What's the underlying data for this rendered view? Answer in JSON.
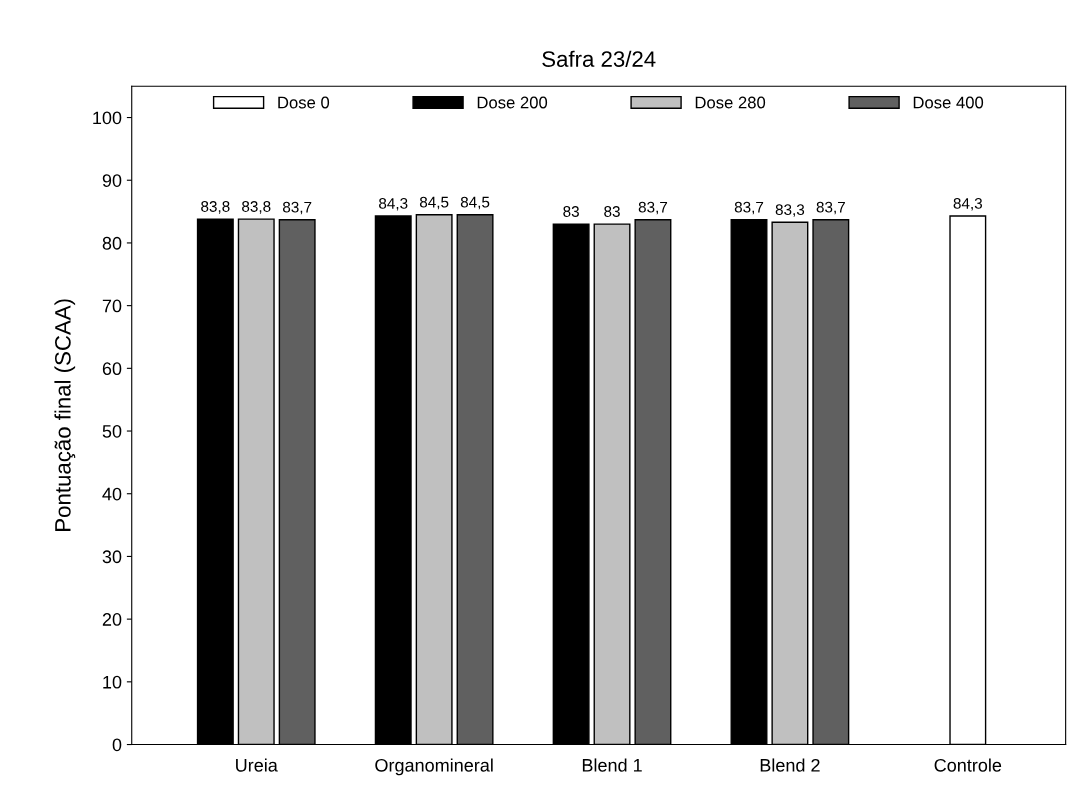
{
  "chart_data": {
    "type": "bar",
    "title": "Safra 23/24",
    "ylabel": "Pontuação final (SCAA)",
    "categories": [
      "Ureia",
      "Organomineral",
      "Blend 1",
      "Blend 2",
      "Controle"
    ],
    "series": [
      {
        "name": "Dose 0",
        "color": "#ffffff",
        "values": [
          null,
          null,
          null,
          null,
          84.3
        ],
        "value_labels": [
          null,
          null,
          null,
          null,
          "84,3"
        ]
      },
      {
        "name": "Dose 200",
        "color": "#000000",
        "values": [
          83.8,
          84.3,
          83,
          83.7,
          null
        ],
        "value_labels": [
          "83,8",
          "84,3",
          "83",
          "83,7",
          null
        ]
      },
      {
        "name": "Dose 280",
        "color": "#c0c0c0",
        "values": [
          83.8,
          84.5,
          83,
          83.3,
          null
        ],
        "value_labels": [
          "83,8",
          "84,5",
          "83",
          "83,3",
          null
        ]
      },
      {
        "name": "Dose 400",
        "color": "#606060",
        "values": [
          83.7,
          84.5,
          83.7,
          83.7,
          null
        ],
        "value_labels": [
          "83,7",
          "84,5",
          "83,7",
          "83,7",
          null
        ]
      }
    ],
    "ylim": [
      0,
      105
    ],
    "yticks": [
      0,
      10,
      20,
      30,
      40,
      50,
      60,
      70,
      80,
      90,
      100
    ],
    "legend": "top",
    "grid": false
  }
}
